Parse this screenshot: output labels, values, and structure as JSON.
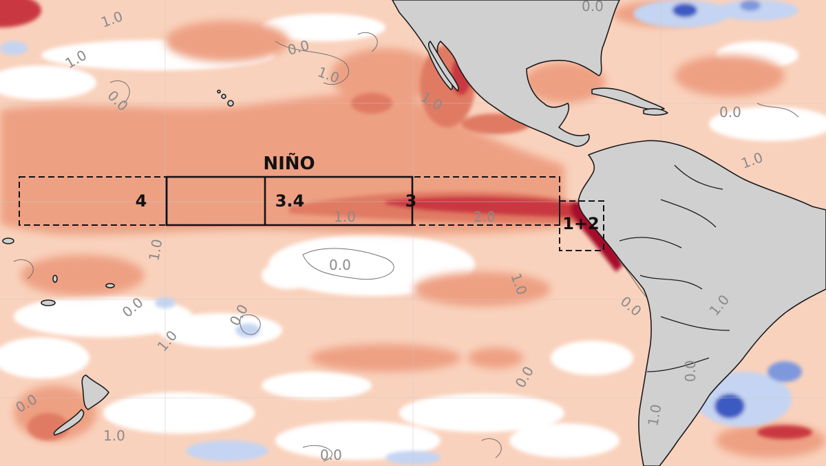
{
  "map": {
    "labels": {
      "nino_title": "NIÑO",
      "region_4": "4",
      "region_34": "3.4",
      "region_3": "3",
      "region_12": "1+2"
    },
    "contour_labels": [
      {
        "text": "1.0"
      },
      {
        "text": "1.0"
      },
      {
        "text": "0.0"
      },
      {
        "text": "1.0"
      },
      {
        "text": "0.0"
      },
      {
        "text": "0.0"
      },
      {
        "text": "0.0"
      },
      {
        "text": "1.0"
      },
      {
        "text": "1.0"
      },
      {
        "text": "1.0"
      },
      {
        "text": "2.0"
      },
      {
        "text": "1.0"
      },
      {
        "text": "0.0"
      },
      {
        "text": "1.0"
      },
      {
        "text": "0.0"
      },
      {
        "text": "0.0"
      },
      {
        "text": "1.0"
      },
      {
        "text": "0.0"
      },
      {
        "text": "0.0"
      },
      {
        "text": "1.0"
      },
      {
        "text": "0.0"
      },
      {
        "text": "1.0"
      },
      {
        "text": "0.0"
      },
      {
        "text": "0.0"
      },
      {
        "text": "1.0"
      }
    ],
    "colors": {
      "ocean_light": "#f9d2bd",
      "ocean_mid": "#eea083",
      "ocean_strong": "#e07a64",
      "ocean_hot": "#c9383f",
      "ocean_extreme": "#a50f2c",
      "cool_light": "#c4d4f2",
      "cool_mid": "#7e98de",
      "cool_strong": "#3e5ac2",
      "land": "#d0d0d0",
      "coast": "#1a1a1a",
      "box_line": "#111111"
    }
  }
}
